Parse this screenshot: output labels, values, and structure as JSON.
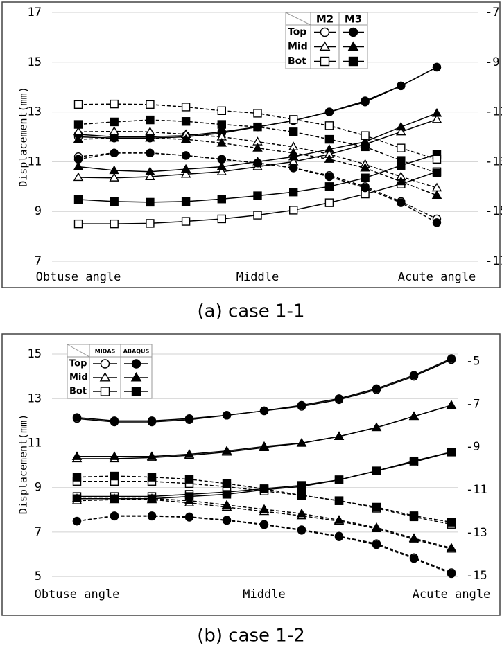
{
  "chart_data": [
    {
      "type": "line",
      "caption": "(a) case 1-1",
      "ylabel": "Displacement(mm)",
      "categories": [
        "Obtuse angle",
        null,
        null,
        null,
        null,
        "Middle",
        null,
        null,
        null,
        null,
        "Acute angle"
      ],
      "ylim": [
        7,
        17
      ],
      "yticks": [
        7,
        9,
        11,
        13,
        15,
        17
      ],
      "y2lim": [
        -17,
        -7
      ],
      "y2ticks": [
        -17,
        -15,
        -13,
        -11,
        -9,
        -7
      ],
      "grid": true,
      "legend": {
        "columns": [
          "M2",
          "M3"
        ],
        "rows": [
          "Top",
          "Mid",
          "Bot"
        ],
        "corner": "top-right"
      },
      "series": [
        {
          "row": 0,
          "col": 0,
          "marker": "circle",
          "filled": false,
          "dashed": false,
          "color": "#000000",
          "values": [
            12.0,
            11.95,
            11.95,
            12.0,
            12.15,
            12.4,
            12.65,
            13.0,
            13.4,
            14.05,
            14.8
          ]
        },
        {
          "row": 0,
          "col": 1,
          "marker": "circle",
          "filled": true,
          "dashed": false,
          "color": "#000000",
          "values": [
            12.1,
            12.0,
            12.0,
            12.05,
            12.2,
            12.4,
            12.65,
            13.0,
            13.45,
            14.05,
            14.8
          ]
        },
        {
          "row": 1,
          "col": 0,
          "marker": "triangle",
          "filled": false,
          "dashed": false,
          "color": "#000000",
          "values": [
            10.37,
            10.35,
            10.4,
            10.5,
            10.6,
            10.8,
            11.0,
            11.3,
            11.7,
            12.2,
            12.7
          ]
        },
        {
          "row": 1,
          "col": 1,
          "marker": "triangle",
          "filled": true,
          "dashed": false,
          "color": "#000000",
          "values": [
            10.8,
            10.65,
            10.6,
            10.7,
            10.8,
            11.0,
            11.2,
            11.5,
            11.8,
            12.4,
            12.95
          ]
        },
        {
          "row": 2,
          "col": 0,
          "marker": "square",
          "filled": false,
          "dashed": false,
          "color": "#000000",
          "values": [
            8.5,
            8.5,
            8.52,
            8.6,
            8.7,
            8.85,
            9.05,
            9.35,
            9.7,
            10.1,
            10.6
          ]
        },
        {
          "row": 2,
          "col": 1,
          "marker": "square",
          "filled": true,
          "dashed": false,
          "color": "#000000",
          "values": [
            9.48,
            9.4,
            9.37,
            9.4,
            9.5,
            9.63,
            9.78,
            10.0,
            10.35,
            10.85,
            11.3
          ]
        },
        {
          "row": 0,
          "col": 0,
          "marker": "circle",
          "filled": false,
          "dashed": true,
          "axis": "y2",
          "color": "#000000",
          "values": [
            -12.8,
            -12.65,
            -12.65,
            -12.75,
            -12.9,
            -13.05,
            -13.25,
            -13.55,
            -14.0,
            -14.6,
            -15.3
          ]
        },
        {
          "row": 0,
          "col": 1,
          "marker": "circle",
          "filled": true,
          "dashed": true,
          "axis": "y2",
          "color": "#000000",
          "values": [
            -12.9,
            -12.65,
            -12.65,
            -12.75,
            -12.9,
            -13.05,
            -13.25,
            -13.6,
            -14.05,
            -14.65,
            -15.45
          ]
        },
        {
          "row": 1,
          "col": 0,
          "marker": "triangle",
          "filled": false,
          "dashed": true,
          "axis": "y2",
          "color": "#000000",
          "values": [
            -11.8,
            -11.78,
            -11.8,
            -11.9,
            -12.0,
            -12.2,
            -12.4,
            -12.7,
            -13.1,
            -13.6,
            -14.05
          ]
        },
        {
          "row": 1,
          "col": 1,
          "marker": "triangle",
          "filled": true,
          "dashed": true,
          "axis": "y2",
          "color": "#000000",
          "values": [
            -12.1,
            -12.05,
            -12.05,
            -12.1,
            -12.25,
            -12.45,
            -12.65,
            -12.9,
            -13.25,
            -13.8,
            -14.35
          ]
        },
        {
          "row": 2,
          "col": 0,
          "marker": "square",
          "filled": false,
          "dashed": true,
          "axis": "y2",
          "color": "#000000",
          "values": [
            -10.7,
            -10.68,
            -10.7,
            -10.8,
            -10.95,
            -11.05,
            -11.3,
            -11.55,
            -11.95,
            -12.45,
            -12.9
          ]
        },
        {
          "row": 2,
          "col": 1,
          "marker": "square",
          "filled": true,
          "dashed": true,
          "axis": "y2",
          "color": "#000000",
          "values": [
            -11.5,
            -11.4,
            -11.32,
            -11.38,
            -11.5,
            -11.6,
            -11.8,
            -12.1,
            -12.4,
            -12.95,
            -13.45
          ]
        }
      ]
    },
    {
      "type": "line",
      "caption": "(b) case 1-2",
      "ylabel": "Displacement(mm)",
      "categories": [
        "Obtuse angle",
        null,
        null,
        null,
        null,
        "Middle",
        null,
        null,
        null,
        null,
        "Acute angle"
      ],
      "ylim": [
        4.6,
        15.5
      ],
      "yticks": [
        5,
        7,
        9,
        11,
        13,
        15
      ],
      "y2lim": [
        -15.45,
        -4.15
      ],
      "y2ticks": [
        -15,
        -13,
        -11,
        -9,
        -7,
        -5
      ],
      "grid": true,
      "legend": {
        "columns": [
          "MIDAS",
          "ABAQUS"
        ],
        "rows": [
          "Top",
          "Mid",
          "Bot"
        ],
        "corner": "top-left"
      },
      "series": [
        {
          "row": 0,
          "col": 0,
          "marker": "circle",
          "filled": false,
          "dashed": false,
          "color": "#000000",
          "values": [
            12.1,
            11.95,
            11.95,
            12.05,
            12.25,
            12.45,
            12.65,
            12.95,
            13.4,
            14.0,
            14.75
          ]
        },
        {
          "row": 0,
          "col": 1,
          "marker": "circle",
          "filled": true,
          "dashed": false,
          "color": "#000000",
          "values": [
            12.15,
            12.0,
            12.0,
            12.1,
            12.25,
            12.45,
            12.7,
            13.0,
            13.45,
            14.05,
            14.8
          ]
        },
        {
          "row": 1,
          "col": 0,
          "marker": "triangle",
          "filled": false,
          "dashed": false,
          "color": "#000000",
          "values": [
            10.3,
            10.3,
            10.35,
            10.45,
            10.6,
            10.8,
            11.0,
            11.3,
            11.7,
            12.2,
            12.7
          ]
        },
        {
          "row": 1,
          "col": 1,
          "marker": "triangle",
          "filled": true,
          "dashed": false,
          "color": "#000000",
          "values": [
            10.4,
            10.4,
            10.4,
            10.5,
            10.65,
            10.85,
            11.0,
            11.3,
            11.7,
            12.2,
            12.7
          ]
        },
        {
          "row": 2,
          "col": 0,
          "marker": "square",
          "filled": false,
          "dashed": false,
          "color": "#000000",
          "values": [
            8.6,
            8.6,
            8.6,
            8.7,
            8.8,
            8.95,
            9.1,
            9.35,
            9.75,
            10.15,
            10.6
          ]
        },
        {
          "row": 2,
          "col": 1,
          "marker": "square",
          "filled": true,
          "dashed": false,
          "color": "#000000",
          "values": [
            8.5,
            8.5,
            8.5,
            8.6,
            8.7,
            8.9,
            9.05,
            9.35,
            9.75,
            10.2,
            10.6
          ]
        },
        {
          "row": 0,
          "col": 0,
          "marker": "circle",
          "filled": false,
          "dashed": true,
          "axis": "y2",
          "color": "#000000",
          "values": [
            -12.45,
            -12.2,
            -12.2,
            -12.25,
            -12.4,
            -12.6,
            -12.85,
            -13.15,
            -13.5,
            -14.15,
            -14.85
          ]
        },
        {
          "row": 0,
          "col": 1,
          "marker": "circle",
          "filled": true,
          "dashed": true,
          "axis": "y2",
          "color": "#000000",
          "values": [
            -12.45,
            -12.22,
            -12.22,
            -12.27,
            -12.42,
            -12.62,
            -12.88,
            -13.18,
            -13.55,
            -14.2,
            -14.9
          ]
        },
        {
          "row": 1,
          "col": 0,
          "marker": "triangle",
          "filled": false,
          "dashed": true,
          "axis": "y2",
          "color": "#000000",
          "values": [
            -11.5,
            -11.45,
            -11.45,
            -11.6,
            -11.8,
            -12.0,
            -12.2,
            -12.45,
            -12.8,
            -13.3,
            -13.75
          ]
        },
        {
          "row": 1,
          "col": 1,
          "marker": "triangle",
          "filled": true,
          "dashed": true,
          "axis": "y2",
          "color": "#000000",
          "values": [
            -11.4,
            -11.4,
            -11.4,
            -11.5,
            -11.7,
            -11.9,
            -12.1,
            -12.4,
            -12.75,
            -13.25,
            -13.7
          ]
        },
        {
          "row": 2,
          "col": 0,
          "marker": "square",
          "filled": false,
          "dashed": true,
          "axis": "y2",
          "color": "#000000",
          "values": [
            -10.6,
            -10.6,
            -10.6,
            -10.7,
            -10.85,
            -11.05,
            -11.25,
            -11.5,
            -11.85,
            -12.25,
            -12.6
          ]
        },
        {
          "row": 2,
          "col": 1,
          "marker": "square",
          "filled": true,
          "dashed": true,
          "axis": "y2",
          "color": "#000000",
          "values": [
            -10.4,
            -10.35,
            -10.4,
            -10.5,
            -10.7,
            -10.95,
            -11.25,
            -11.5,
            -11.8,
            -12.2,
            -12.5
          ]
        }
      ]
    }
  ]
}
